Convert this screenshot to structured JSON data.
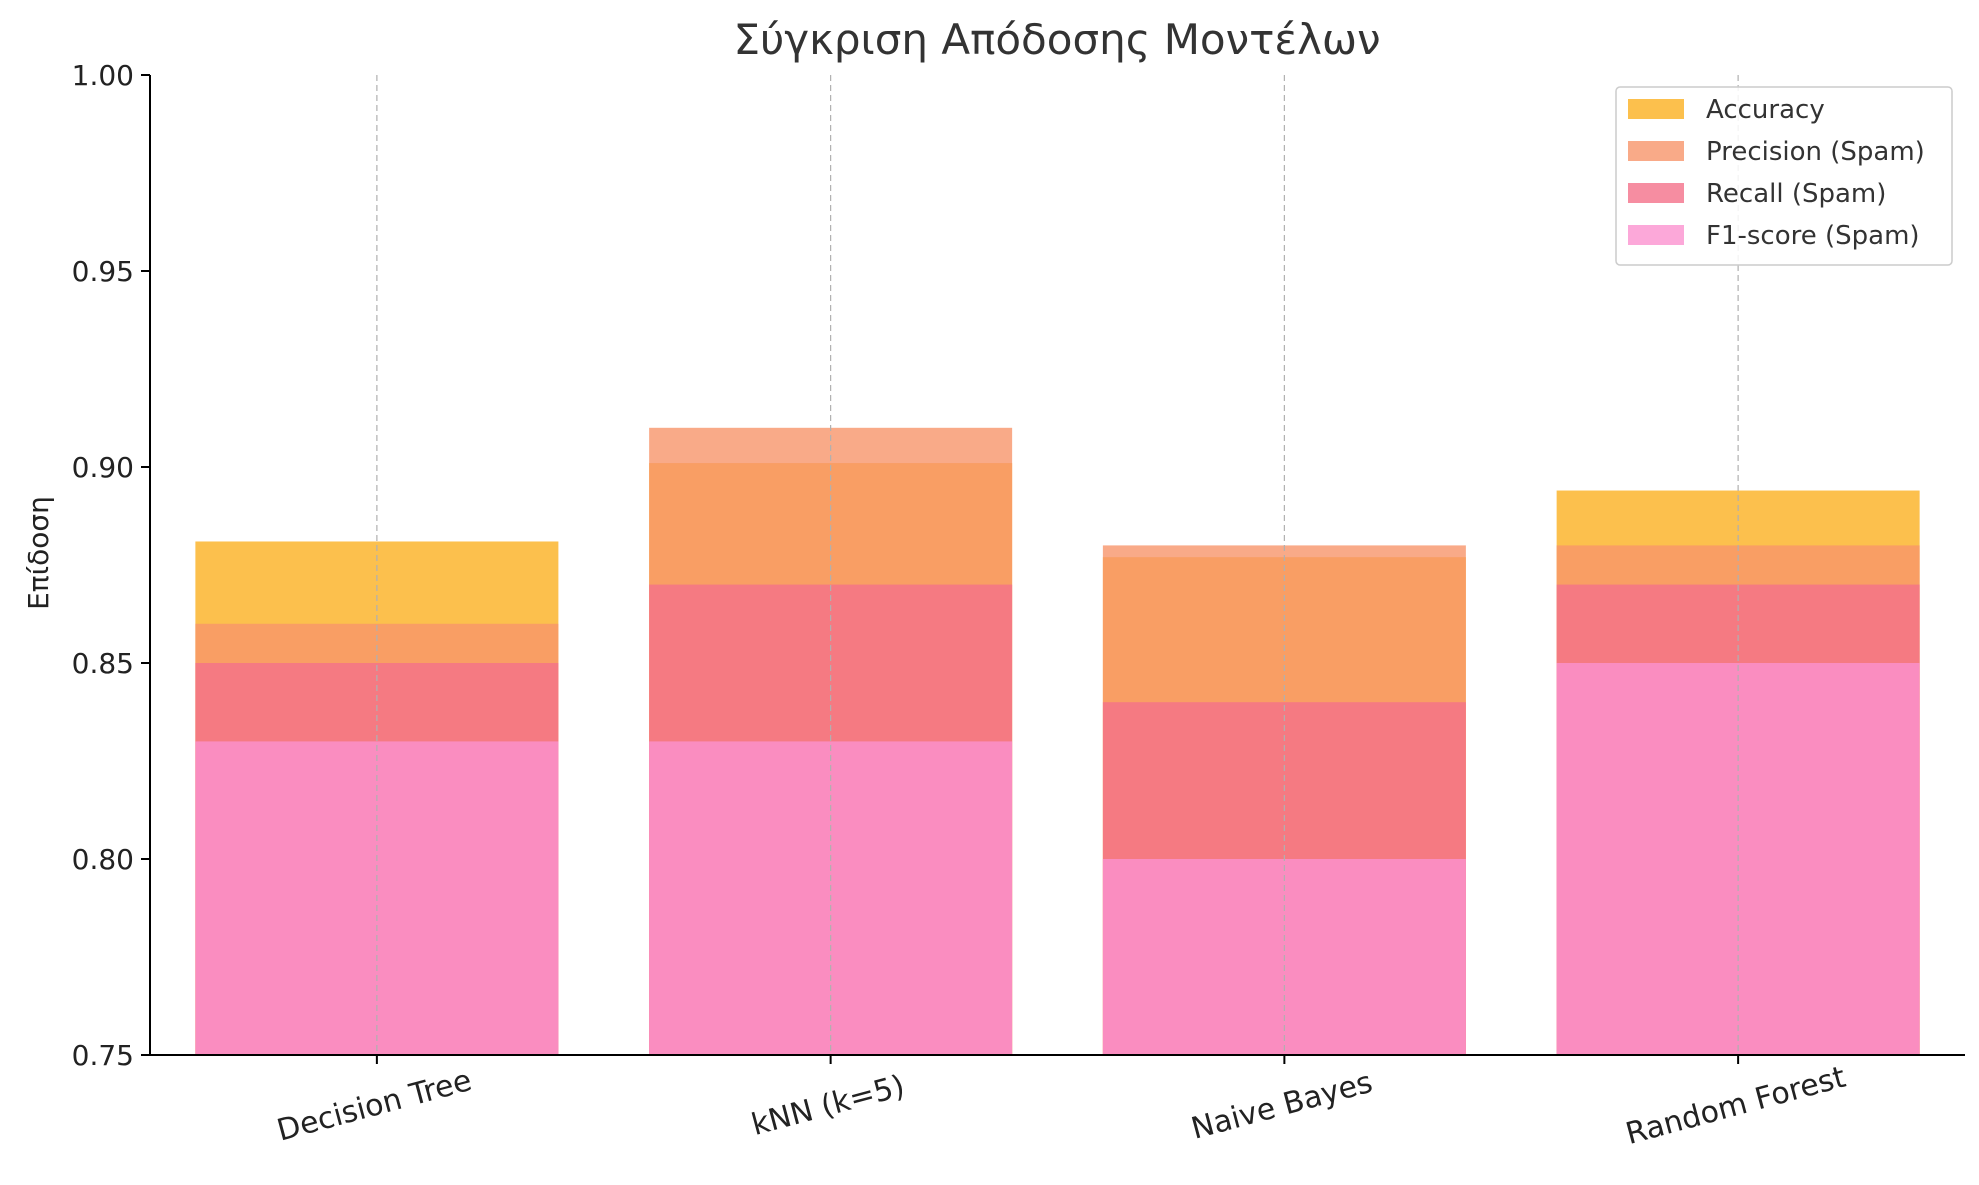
{
  "chart_data": {
    "type": "bar",
    "title": "Σύγκριση Απόδοσης Μοντέλων",
    "xlabel": "",
    "ylabel": "Επίδοση",
    "ylim": [
      0.75,
      1.0
    ],
    "yticks": [
      "0.75",
      "0.80",
      "0.85",
      "0.90",
      "0.95",
      "1.00"
    ],
    "categories": [
      "Decision Tree",
      "kNN (k=5)",
      "Naive Bayes",
      "Random Forest"
    ],
    "overlaid": true,
    "grid": "vertical dashed at categories",
    "legend_position": "top-right",
    "series": [
      {
        "name": "Accuracy",
        "color": "#fbb021",
        "values": [
          0.881,
          0.901,
          0.877,
          0.894
        ]
      },
      {
        "name": "Precision (Spam)",
        "color": "#f7956a",
        "values": [
          0.86,
          0.91,
          0.88,
          0.88
        ]
      },
      {
        "name": "Recall (Spam)",
        "color": "#f4718a",
        "values": [
          0.85,
          0.87,
          0.84,
          0.87
        ]
      },
      {
        "name": "F1-score (Spam)",
        "color": "#fb92d0",
        "values": [
          0.83,
          0.83,
          0.8,
          0.85
        ]
      }
    ]
  }
}
